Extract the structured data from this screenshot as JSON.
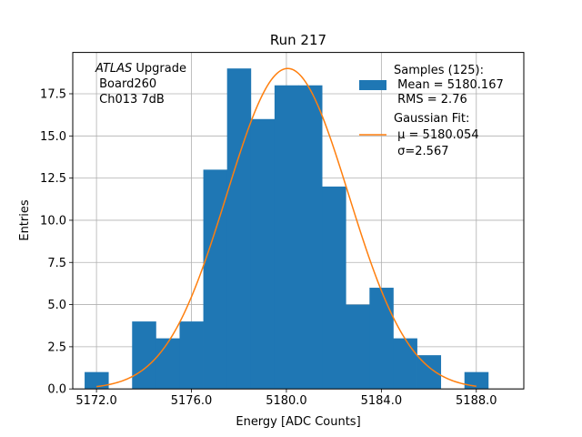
{
  "chart_data": {
    "type": "bar",
    "title": "Run 217",
    "xlabel": "Energy [ADC Counts]",
    "ylabel": "Entries",
    "xlim": [
      5171.0,
      5190.0
    ],
    "ylim": [
      0,
      19.95
    ],
    "grid": true,
    "x_ticks": [
      5172.0,
      5176.0,
      5180.0,
      5184.0,
      5188.0
    ],
    "x_tick_labels": [
      "5172.0",
      "5176.0",
      "5180.0",
      "5184.0",
      "5188.0"
    ],
    "y_ticks": [
      0.0,
      2.5,
      5.0,
      7.5,
      10.0,
      12.5,
      15.0,
      17.5
    ],
    "y_tick_labels": [
      "0.0",
      "2.5",
      "5.0",
      "7.5",
      "10.0",
      "12.5",
      "15.0",
      "17.5"
    ],
    "bin_width": 1.0,
    "bins": [
      {
        "x": 5172.0,
        "count": 1
      },
      {
        "x": 5173.0,
        "count": 0
      },
      {
        "x": 5174.0,
        "count": 4
      },
      {
        "x": 5175.0,
        "count": 3
      },
      {
        "x": 5176.0,
        "count": 4
      },
      {
        "x": 5177.0,
        "count": 13
      },
      {
        "x": 5178.0,
        "count": 19
      },
      {
        "x": 5179.0,
        "count": 16
      },
      {
        "x": 5180.0,
        "count": 18
      },
      {
        "x": 5181.0,
        "count": 18
      },
      {
        "x": 5182.0,
        "count": 12
      },
      {
        "x": 5183.0,
        "count": 5
      },
      {
        "x": 5184.0,
        "count": 6
      },
      {
        "x": 5185.0,
        "count": 3
      },
      {
        "x": 5186.0,
        "count": 2
      },
      {
        "x": 5187.0,
        "count": 0
      },
      {
        "x": 5188.0,
        "count": 1
      }
    ],
    "fit": {
      "type": "gaussian",
      "mu": 5180.054,
      "sigma": 2.567,
      "amplitude": 19.0,
      "x_range": [
        5172.0,
        5188.0
      ]
    },
    "annotation": {
      "italic": "ATLAS",
      "rest": " Upgrade",
      "line2": " Board260",
      "line3": " Ch013 7dB"
    },
    "legend": {
      "placement": "top-right",
      "entries": [
        {
          "kind": "bar",
          "lines": [
            "Samples (125):",
            " Mean = 5180.167",
            " RMS = 2.76"
          ]
        },
        {
          "kind": "line",
          "lines": [
            "Gaussian Fit:",
            " μ = 5180.054",
            " σ=2.567"
          ]
        }
      ]
    },
    "colors": {
      "bar": "#1f77b4",
      "fit": "#ff7f0e",
      "grid": "#b0b0b0"
    }
  }
}
